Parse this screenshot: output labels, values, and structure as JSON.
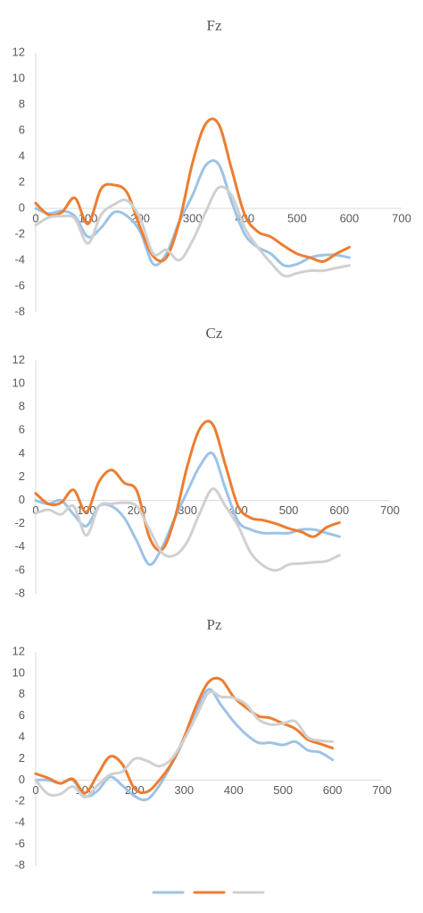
{
  "chart_data": [
    {
      "type": "line",
      "title": "Fz",
      "x": [
        0,
        25,
        50,
        75,
        100,
        125,
        150,
        175,
        200,
        225,
        250,
        275,
        300,
        325,
        350,
        375,
        400,
        425,
        450,
        475,
        500,
        525,
        550,
        575,
        600
      ],
      "series": [
        {
          "color": "#9dc3e6",
          "values": [
            0,
            -0.4,
            -0.2,
            -0.6,
            -2.2,
            -1.5,
            -0.3,
            -0.6,
            -1.8,
            -4.3,
            -3.5,
            -1,
            1,
            3.3,
            3.4,
            0.5,
            -2,
            -3,
            -3.5,
            -4.4,
            -4.3,
            -3.8,
            -3.6,
            -3.6,
            -3.8
          ]
        },
        {
          "color": "#ed7d31",
          "values": [
            0.4,
            -0.5,
            -0.3,
            0.8,
            -1.2,
            1.5,
            1.8,
            1.2,
            -1.5,
            -3.7,
            -3.8,
            -1,
            3.5,
            6.5,
            6.5,
            3,
            -0.5,
            -1.8,
            -2.2,
            -2.9,
            -3.5,
            -3.8,
            -4.1,
            -3.5,
            -3
          ]
        },
        {
          "color": "#d0d0d0",
          "values": [
            -1.3,
            -0.7,
            -0.6,
            -0.8,
            -2.7,
            -0.5,
            0.3,
            0.6,
            -0.8,
            -3.5,
            -3.2,
            -4,
            -2.5,
            -0.3,
            1.6,
            1,
            -1.5,
            -3,
            -4.2,
            -5.2,
            -5,
            -4.8,
            -4.8,
            -4.6,
            -4.4
          ]
        }
      ],
      "xlim": [
        0,
        700
      ],
      "xticks": [
        0,
        100,
        200,
        300,
        400,
        500,
        600,
        700
      ],
      "ylim": [
        -8,
        12
      ],
      "yticks": [
        -8,
        -6,
        -4,
        -2,
        0,
        2,
        4,
        6,
        8,
        10,
        12
      ]
    },
    {
      "type": "line",
      "title": "Cz",
      "x": [
        0,
        25,
        50,
        75,
        100,
        125,
        150,
        175,
        200,
        225,
        250,
        275,
        300,
        325,
        350,
        375,
        400,
        425,
        450,
        475,
        500,
        525,
        550,
        575,
        600
      ],
      "series": [
        {
          "color": "#9dc3e6",
          "values": [
            0,
            -0.3,
            0,
            -1.2,
            -2.2,
            -0.5,
            -0.5,
            -1.5,
            -3.5,
            -5.5,
            -4,
            -1.5,
            0.8,
            3,
            4,
            1,
            -1.8,
            -2.5,
            -2.8,
            -2.8,
            -2.8,
            -2.5,
            -2.5,
            -2.8,
            -3.1
          ]
        },
        {
          "color": "#ed7d31",
          "values": [
            0.6,
            -0.3,
            -0.2,
            0.9,
            -1,
            1.6,
            2.6,
            1.5,
            0.8,
            -3.2,
            -4.2,
            -1.5,
            3,
            6.2,
            6.5,
            3,
            -0.5,
            -1.5,
            -1.7,
            -2,
            -2.4,
            -2.7,
            -3.1,
            -2.3,
            -1.9
          ]
        },
        {
          "color": "#d0d0d0",
          "values": [
            -1.1,
            -0.8,
            -1.2,
            -0.5,
            -3,
            -0.5,
            -0.3,
            -0.2,
            -0.5,
            -2.5,
            -4.5,
            -4.7,
            -3.5,
            -1,
            1,
            -0.5,
            -2.2,
            -4.5,
            -5.6,
            -6,
            -5.5,
            -5.4,
            -5.3,
            -5.2,
            -4.7
          ]
        }
      ],
      "xlim": [
        0,
        700
      ],
      "xticks": [
        0,
        100,
        200,
        300,
        400,
        500,
        600,
        700
      ],
      "ylim": [
        -8,
        12
      ],
      "yticks": [
        -8,
        -6,
        -4,
        -2,
        0,
        2,
        4,
        6,
        8,
        10,
        12
      ]
    },
    {
      "type": "line",
      "title": "Pz",
      "x": [
        0,
        25,
        50,
        75,
        100,
        125,
        150,
        175,
        200,
        225,
        250,
        275,
        300,
        325,
        350,
        375,
        400,
        425,
        450,
        475,
        500,
        525,
        550,
        575,
        600
      ],
      "series": [
        {
          "color": "#9dc3e6",
          "values": [
            0,
            0,
            -0.3,
            0,
            -1.5,
            -1,
            0.3,
            -0.5,
            -1.5,
            -1.8,
            -0.5,
            1.5,
            3.8,
            6.5,
            8.5,
            7,
            5.5,
            4.3,
            3.5,
            3.5,
            3.3,
            3.6,
            2.8,
            2.6,
            1.9
          ]
        },
        {
          "color": "#ed7d31",
          "values": [
            0.6,
            0.2,
            -0.3,
            0.1,
            -1.2,
            0.5,
            2.2,
            1.5,
            -0.8,
            -1.1,
            0,
            1.6,
            4,
            7,
            9.2,
            9.4,
            7.8,
            6.8,
            6,
            5.8,
            5.3,
            4.8,
            3.8,
            3.4,
            3
          ]
        },
        {
          "color": "#d0d0d0",
          "values": [
            0,
            -1.3,
            -1.3,
            -0.6,
            -1.6,
            -0.5,
            0.5,
            0.8,
            2,
            1.8,
            1.3,
            2,
            3.8,
            6,
            8.2,
            7.8,
            7.7,
            7.1,
            5.7,
            5.2,
            5.3,
            5.5,
            4,
            3.7,
            3.6
          ]
        }
      ],
      "xlim": [
        0,
        700
      ],
      "xticks": [
        0,
        100,
        200,
        300,
        400,
        500,
        600,
        700
      ],
      "ylim": [
        -8,
        12
      ],
      "yticks": [
        -8,
        -6,
        -4,
        -2,
        0,
        2,
        4,
        6,
        8,
        10,
        12
      ]
    }
  ]
}
